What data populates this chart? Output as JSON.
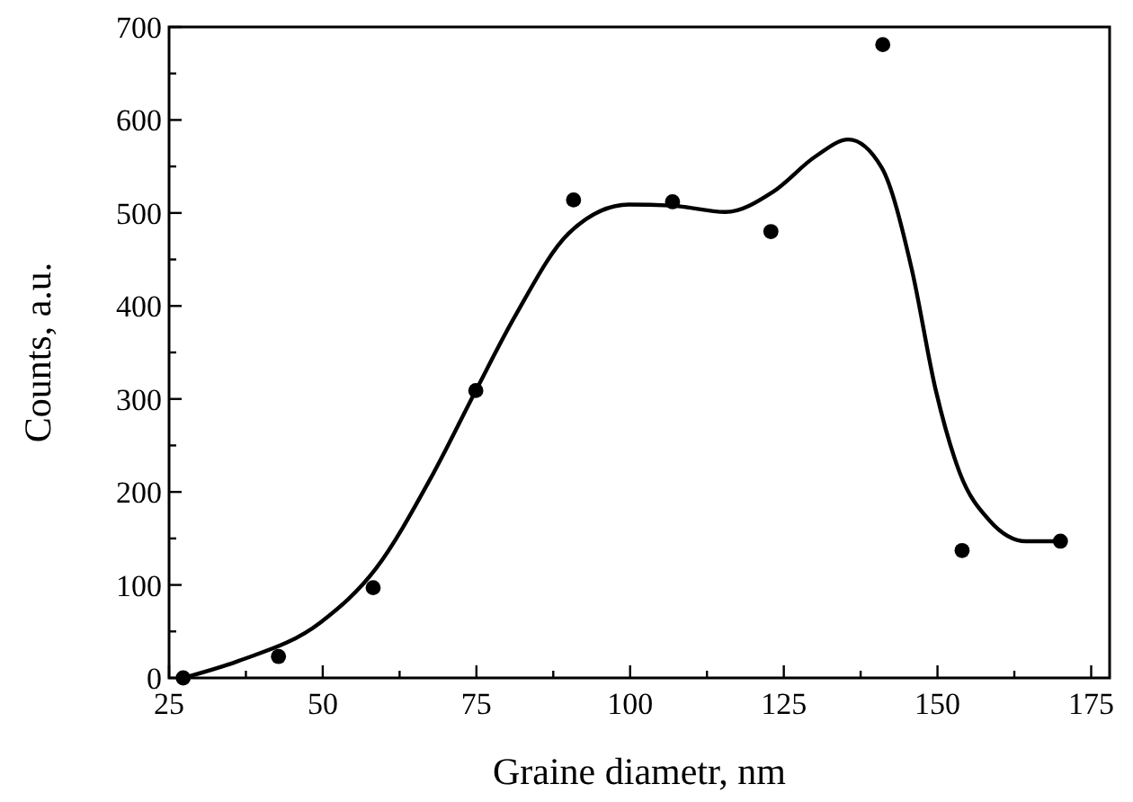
{
  "chart_data": {
    "type": "scatter",
    "xlabel": "Graine diametr, nm",
    "ylabel": "Counts, a.u.",
    "xlim": [
      25,
      178
    ],
    "xticks": [
      25,
      {
        "value": 37.5,
        "label": null
      },
      50,
      {
        "value": 62.5,
        "label": null
      },
      75,
      {
        "value": 87.5,
        "label": null
      },
      100,
      {
        "value": 112.5,
        "label": null
      },
      125,
      {
        "value": 137.5,
        "label": null
      },
      150,
      {
        "value": 162.5,
        "label": null
      },
      175
    ],
    "ylim": [
      0,
      700
    ],
    "yticks": [
      0,
      {
        "value": 50,
        "label": null
      },
      100,
      {
        "value": 150,
        "label": null
      },
      200,
      {
        "value": 250,
        "label": null
      },
      300,
      {
        "value": 350,
        "label": null
      },
      400,
      {
        "value": 450,
        "label": null
      },
      500,
      {
        "value": 550,
        "label": null
      },
      600,
      {
        "value": 650,
        "label": null
      },
      700
    ],
    "grid": false,
    "series": [
      {
        "color": "#000000",
        "marker": "circle",
        "x": [
          27.3,
          42.8,
          58.2,
          74.9,
          90.8,
          106.9,
          122.9,
          141.1,
          154,
          170
        ],
        "values": [
          0,
          23,
          97,
          309,
          514,
          512,
          480,
          681,
          137,
          147
        ]
      },
      {
        "type": "line",
        "color": "#000000",
        "marker": "none",
        "line_style": "solid",
        "x": [
          27.3,
          36.2,
          49.7,
          58.7,
          67.5,
          74.9,
          81.2,
          90,
          99.8,
          106.7,
          115.5,
          123.3,
          130.2,
          135.5,
          140.9,
          145.8,
          149.7,
          153.6,
          158.5,
          164.4,
          170
        ],
        "values": [
          0,
          18,
          60,
          118,
          214,
          309,
          388,
          478,
          509,
          508,
          501,
          523,
          561,
          579,
          549,
          440,
          310,
          221,
          169,
          147,
          147
        ]
      }
    ]
  }
}
